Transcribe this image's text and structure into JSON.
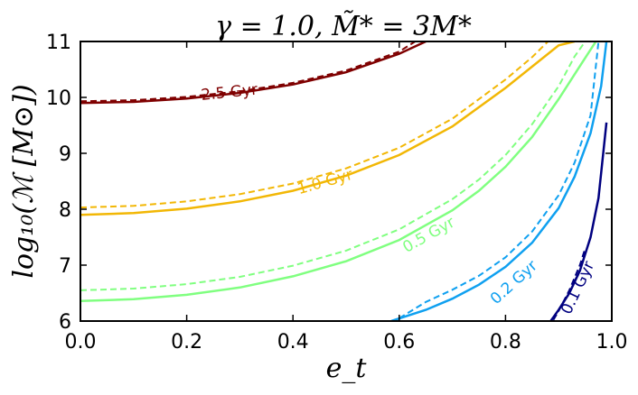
{
  "chart_data": {
    "type": "line",
    "title": "γ = 1.0, M̃* = 3M*",
    "xlabel": "e_t",
    "ylabel": "log₁₀(ℳ [M⊙])",
    "xlim": [
      0.0,
      1.0
    ],
    "ylim": [
      6,
      11
    ],
    "xticks": [
      "0.0",
      "0.2",
      "0.4",
      "0.6",
      "0.8",
      "1.0"
    ],
    "yticks": [
      "6",
      "7",
      "8",
      "9",
      "10",
      "11"
    ],
    "grid": false,
    "series": [
      {
        "name": "2.5 Gyr",
        "color": "#7f0000",
        "solid": {
          "x": [
            0.0,
            0.1,
            0.2,
            0.3,
            0.4,
            0.5,
            0.6,
            0.65
          ],
          "y": [
            9.9,
            9.92,
            9.98,
            10.08,
            10.23,
            10.45,
            10.78,
            11.0
          ]
        },
        "dashed": {
          "x": [
            0.0,
            0.1,
            0.2,
            0.3,
            0.4,
            0.5,
            0.6,
            0.63
          ],
          "y": [
            9.93,
            9.95,
            10.01,
            10.11,
            10.26,
            10.48,
            10.82,
            11.0
          ]
        },
        "label_pos": {
          "x": 0.28,
          "y": 10.1
        }
      },
      {
        "name": "1.0 Gyr",
        "color": "#f2b705",
        "solid": {
          "x": [
            0.0,
            0.1,
            0.2,
            0.3,
            0.4,
            0.5,
            0.6,
            0.7,
            0.8,
            0.85,
            0.9,
            0.93
          ],
          "y": [
            7.9,
            7.93,
            8.01,
            8.14,
            8.33,
            8.6,
            8.97,
            9.48,
            10.17,
            10.55,
            10.93,
            11.0
          ]
        },
        "dashed": {
          "x": [
            0.0,
            0.1,
            0.2,
            0.3,
            0.4,
            0.5,
            0.6,
            0.7,
            0.8,
            0.85,
            0.88
          ],
          "y": [
            8.03,
            8.06,
            8.14,
            8.27,
            8.46,
            8.73,
            9.1,
            9.62,
            10.32,
            10.72,
            11.0
          ]
        },
        "label_pos": {
          "x": 0.46,
          "y": 8.5
        }
      },
      {
        "name": "0.5 Gyr",
        "color": "#80ff80",
        "solid": {
          "x": [
            0.0,
            0.1,
            0.2,
            0.3,
            0.4,
            0.5,
            0.6,
            0.7,
            0.75,
            0.8,
            0.85,
            0.9,
            0.94,
            0.97
          ],
          "y": [
            6.36,
            6.39,
            6.47,
            6.6,
            6.8,
            7.07,
            7.45,
            7.98,
            8.33,
            8.76,
            9.29,
            9.97,
            10.56,
            11.0
          ]
        },
        "dashed": {
          "x": [
            0.0,
            0.1,
            0.2,
            0.3,
            0.4,
            0.5,
            0.6,
            0.7,
            0.75,
            0.8,
            0.85,
            0.9,
            0.93,
            0.95
          ],
          "y": [
            6.55,
            6.58,
            6.66,
            6.79,
            6.99,
            7.26,
            7.64,
            8.18,
            8.53,
            8.97,
            9.52,
            10.2,
            10.73,
            11.0
          ]
        },
        "label_pos": {
          "x": 0.655,
          "y": 7.55
        }
      },
      {
        "name": "0.2 Gyr",
        "color": "#0fa0f0",
        "solid": {
          "x": [
            0.585,
            0.65,
            0.7,
            0.75,
            0.8,
            0.85,
            0.9,
            0.93,
            0.96,
            0.98,
            0.99
          ],
          "y": [
            6.0,
            6.2,
            6.4,
            6.65,
            6.97,
            7.4,
            8.02,
            8.58,
            9.36,
            10.2,
            11.0
          ]
        },
        "dashed": {
          "x": [
            0.6,
            0.65,
            0.7,
            0.75,
            0.8,
            0.85,
            0.9,
            0.93,
            0.96,
            0.975
          ],
          "y": [
            6.05,
            6.34,
            6.56,
            6.81,
            7.14,
            7.6,
            8.25,
            8.83,
            9.68,
            11.0
          ]
        },
        "label_pos": {
          "x": 0.815,
          "y": 6.7
        }
      },
      {
        "name": "0.1 Gyr",
        "color": "#000080",
        "solid": {
          "x": [
            0.885,
            0.9,
            0.92,
            0.94,
            0.96,
            0.975,
            0.99
          ],
          "y": [
            6.0,
            6.2,
            6.5,
            6.9,
            7.5,
            8.2,
            9.55
          ]
        },
        "dashed": {
          "x": [
            0.89,
            0.9,
            0.92,
            0.94,
            0.95
          ],
          "y": [
            6.02,
            6.18,
            6.55,
            7.0,
            7.3
          ]
        },
        "label_pos": {
          "x": 0.935,
          "y": 6.6
        }
      }
    ]
  }
}
